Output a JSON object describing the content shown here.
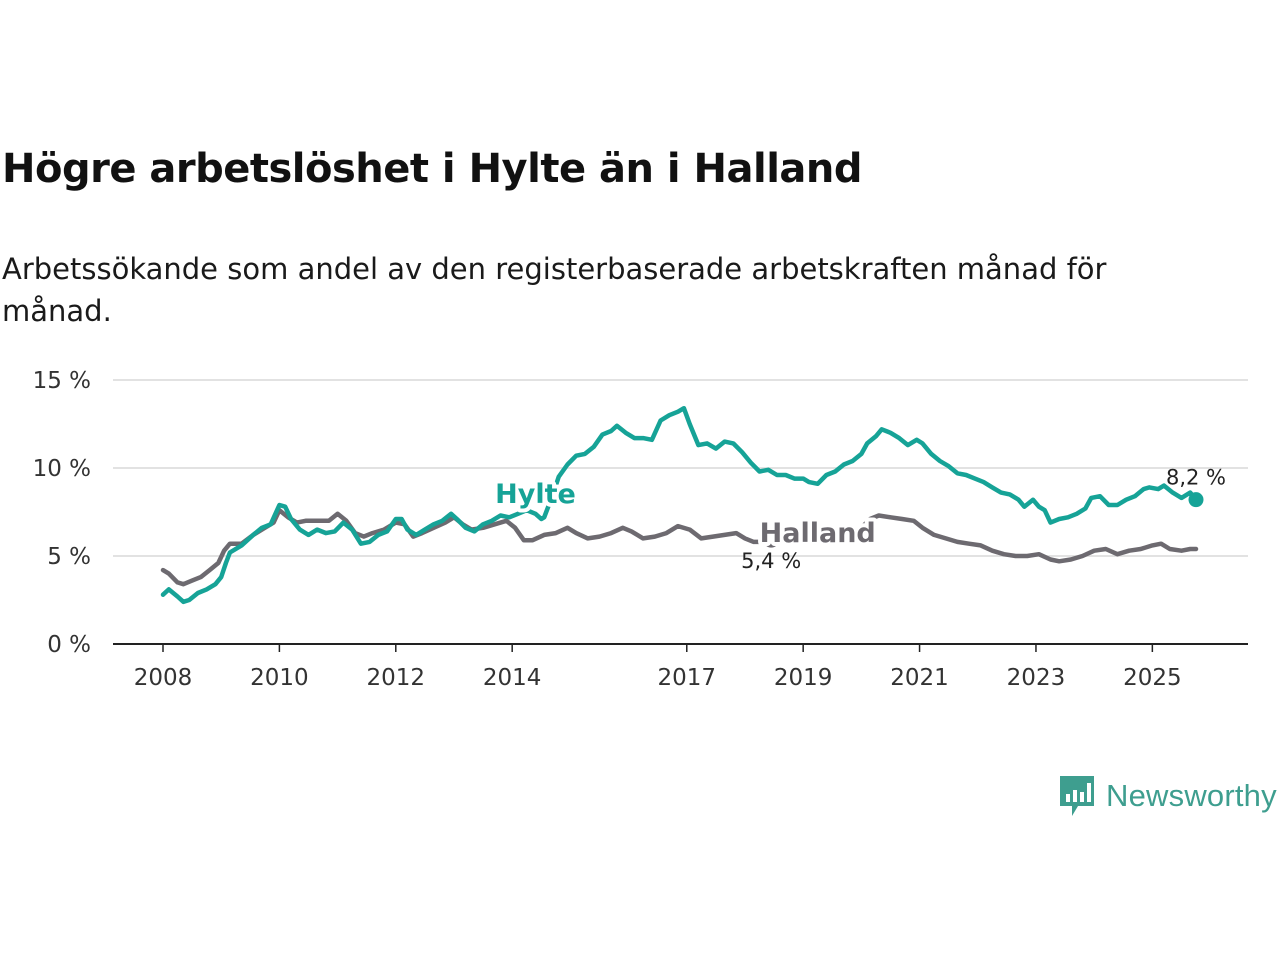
{
  "title": "Högre arbetslöshet i Hylte än i Halland",
  "subtitle": "Arbetssökande som andel av den registerbaserade arbetskraften månad för månad.",
  "brand": {
    "name": "Newsworthy",
    "icon": "bar-chart-speech-bubble-icon",
    "color": "#3e9e8f"
  },
  "chart_data": {
    "type": "line",
    "title": "Högre arbetslöshet i Hylte än i Halland",
    "xlabel": "",
    "ylabel": "",
    "xlim": [
      2008.0,
      2025.75
    ],
    "ylim": [
      0,
      15
    ],
    "y_ticks": [
      0,
      5,
      10,
      15
    ],
    "y_tick_labels": [
      "0 %",
      "5 %",
      "10 %",
      "15 %"
    ],
    "x_ticks": [
      2008,
      2010,
      2012,
      2014,
      2017,
      2019,
      2021,
      2023,
      2025
    ],
    "x_tick_labels": [
      "2008",
      "2010",
      "2012",
      "2014",
      "2017",
      "2019",
      "2021",
      "2023",
      "2025"
    ],
    "grid": true,
    "series": [
      {
        "name": "Hylte",
        "color": "#16a397",
        "end_label": "8,2 %",
        "points": [
          [
            2008.0,
            2.8
          ],
          [
            2008.1,
            3.1
          ],
          [
            2008.25,
            2.7
          ],
          [
            2008.35,
            2.4
          ],
          [
            2008.45,
            2.5
          ],
          [
            2008.6,
            2.9
          ],
          [
            2008.75,
            3.1
          ],
          [
            2008.9,
            3.4
          ],
          [
            2009.0,
            3.8
          ],
          [
            2009.08,
            4.6
          ],
          [
            2009.15,
            5.2
          ],
          [
            2009.35,
            5.6
          ],
          [
            2009.55,
            6.2
          ],
          [
            2009.7,
            6.6
          ],
          [
            2009.85,
            6.8
          ],
          [
            2010.0,
            7.9
          ],
          [
            2010.1,
            7.8
          ],
          [
            2010.2,
            7.1
          ],
          [
            2010.35,
            6.5
          ],
          [
            2010.5,
            6.2
          ],
          [
            2010.65,
            6.5
          ],
          [
            2010.8,
            6.3
          ],
          [
            2010.95,
            6.4
          ],
          [
            2011.1,
            6.9
          ],
          [
            2011.25,
            6.5
          ],
          [
            2011.4,
            5.7
          ],
          [
            2011.55,
            5.8
          ],
          [
            2011.7,
            6.2
          ],
          [
            2011.85,
            6.4
          ],
          [
            2012.0,
            7.1
          ],
          [
            2012.1,
            7.1
          ],
          [
            2012.2,
            6.5
          ],
          [
            2012.35,
            6.2
          ],
          [
            2012.5,
            6.5
          ],
          [
            2012.65,
            6.8
          ],
          [
            2012.8,
            7.0
          ],
          [
            2012.95,
            7.4
          ],
          [
            2013.05,
            7.1
          ],
          [
            2013.2,
            6.6
          ],
          [
            2013.35,
            6.4
          ],
          [
            2013.5,
            6.8
          ],
          [
            2013.65,
            7.0
          ],
          [
            2013.8,
            7.3
          ],
          [
            2013.95,
            7.2
          ],
          [
            2014.1,
            7.4
          ],
          [
            2014.25,
            7.6
          ],
          [
            2014.4,
            7.4
          ],
          [
            2014.5,
            7.1
          ],
          [
            2014.55,
            7.2
          ],
          [
            2014.7,
            8.5
          ],
          [
            2014.8,
            9.5
          ],
          [
            2014.95,
            10.2
          ],
          [
            2015.1,
            10.7
          ],
          [
            2015.25,
            10.8
          ],
          [
            2015.4,
            11.2
          ],
          [
            2015.55,
            11.9
          ],
          [
            2015.7,
            12.1
          ],
          [
            2015.8,
            12.4
          ],
          [
            2015.95,
            12.0
          ],
          [
            2016.1,
            11.7
          ],
          [
            2016.25,
            11.7
          ],
          [
            2016.4,
            11.6
          ],
          [
            2016.55,
            12.7
          ],
          [
            2016.7,
            13.0
          ],
          [
            2016.85,
            13.2
          ],
          [
            2016.95,
            13.4
          ],
          [
            2017.05,
            12.5
          ],
          [
            2017.2,
            11.3
          ],
          [
            2017.35,
            11.4
          ],
          [
            2017.5,
            11.1
          ],
          [
            2017.65,
            11.5
          ],
          [
            2017.8,
            11.4
          ],
          [
            2017.95,
            10.9
          ],
          [
            2018.1,
            10.3
          ],
          [
            2018.25,
            9.8
          ],
          [
            2018.4,
            9.9
          ],
          [
            2018.55,
            9.6
          ],
          [
            2018.7,
            9.6
          ],
          [
            2018.85,
            9.4
          ],
          [
            2019.0,
            9.4
          ],
          [
            2019.1,
            9.2
          ],
          [
            2019.25,
            9.1
          ],
          [
            2019.4,
            9.6
          ],
          [
            2019.55,
            9.8
          ],
          [
            2019.7,
            10.2
          ],
          [
            2019.85,
            10.4
          ],
          [
            2020.0,
            10.8
          ],
          [
            2020.1,
            11.4
          ],
          [
            2020.25,
            11.8
          ],
          [
            2020.35,
            12.2
          ],
          [
            2020.5,
            12.0
          ],
          [
            2020.65,
            11.7
          ],
          [
            2020.8,
            11.3
          ],
          [
            2020.95,
            11.6
          ],
          [
            2021.05,
            11.4
          ],
          [
            2021.2,
            10.8
          ],
          [
            2021.35,
            10.4
          ],
          [
            2021.5,
            10.1
          ],
          [
            2021.65,
            9.7
          ],
          [
            2021.8,
            9.6
          ],
          [
            2021.95,
            9.4
          ],
          [
            2022.1,
            9.2
          ],
          [
            2022.25,
            8.9
          ],
          [
            2022.4,
            8.6
          ],
          [
            2022.55,
            8.5
          ],
          [
            2022.7,
            8.2
          ],
          [
            2022.8,
            7.8
          ],
          [
            2022.95,
            8.2
          ],
          [
            2023.05,
            7.8
          ],
          [
            2023.15,
            7.6
          ],
          [
            2023.25,
            6.9
          ],
          [
            2023.4,
            7.1
          ],
          [
            2023.55,
            7.2
          ],
          [
            2023.7,
            7.4
          ],
          [
            2023.85,
            7.7
          ],
          [
            2023.95,
            8.3
          ],
          [
            2024.1,
            8.4
          ],
          [
            2024.25,
            7.9
          ],
          [
            2024.4,
            7.9
          ],
          [
            2024.55,
            8.2
          ],
          [
            2024.7,
            8.4
          ],
          [
            2024.85,
            8.8
          ],
          [
            2024.95,
            8.9
          ],
          [
            2025.1,
            8.8
          ],
          [
            2025.2,
            9.0
          ],
          [
            2025.35,
            8.6
          ],
          [
            2025.5,
            8.3
          ],
          [
            2025.65,
            8.6
          ],
          [
            2025.75,
            8.2
          ]
        ]
      },
      {
        "name": "Halland",
        "color": "#6d6a70",
        "end_label": "5,4 %",
        "points": [
          [
            2008.0,
            4.2
          ],
          [
            2008.1,
            4.0
          ],
          [
            2008.25,
            3.5
          ],
          [
            2008.35,
            3.4
          ],
          [
            2008.5,
            3.6
          ],
          [
            2008.65,
            3.8
          ],
          [
            2008.8,
            4.2
          ],
          [
            2008.95,
            4.6
          ],
          [
            2009.05,
            5.3
          ],
          [
            2009.15,
            5.7
          ],
          [
            2009.35,
            5.7
          ],
          [
            2009.55,
            6.2
          ],
          [
            2009.75,
            6.6
          ],
          [
            2009.9,
            6.9
          ],
          [
            2010.0,
            7.6
          ],
          [
            2010.15,
            7.2
          ],
          [
            2010.3,
            6.9
          ],
          [
            2010.45,
            7.0
          ],
          [
            2010.65,
            7.0
          ],
          [
            2010.85,
            7.0
          ],
          [
            2011.0,
            7.4
          ],
          [
            2011.15,
            7.0
          ],
          [
            2011.3,
            6.3
          ],
          [
            2011.45,
            6.1
          ],
          [
            2011.6,
            6.3
          ],
          [
            2011.8,
            6.5
          ],
          [
            2012.0,
            6.9
          ],
          [
            2012.15,
            6.8
          ],
          [
            2012.3,
            6.1
          ],
          [
            2012.45,
            6.3
          ],
          [
            2012.65,
            6.6
          ],
          [
            2012.85,
            6.9
          ],
          [
            2013.0,
            7.2
          ],
          [
            2013.15,
            6.8
          ],
          [
            2013.3,
            6.5
          ],
          [
            2013.5,
            6.6
          ],
          [
            2013.7,
            6.8
          ],
          [
            2013.9,
            7.0
          ],
          [
            2014.05,
            6.6
          ],
          [
            2014.2,
            5.9
          ],
          [
            2014.35,
            5.9
          ],
          [
            2014.55,
            6.2
          ],
          [
            2014.75,
            6.3
          ],
          [
            2014.95,
            6.6
          ],
          [
            2015.1,
            6.3
          ],
          [
            2015.3,
            6.0
          ],
          [
            2015.5,
            6.1
          ],
          [
            2015.7,
            6.3
          ],
          [
            2015.9,
            6.6
          ],
          [
            2016.05,
            6.4
          ],
          [
            2016.25,
            6.0
          ],
          [
            2016.45,
            6.1
          ],
          [
            2016.65,
            6.3
          ],
          [
            2016.85,
            6.7
          ],
          [
            2017.05,
            6.5
          ],
          [
            2017.25,
            6.0
          ],
          [
            2017.45,
            6.1
          ],
          [
            2017.65,
            6.2
          ],
          [
            2017.85,
            6.3
          ],
          [
            2018.0,
            6.0
          ],
          [
            2018.15,
            5.8
          ],
          [
            2018.3,
            5.8
          ],
          [
            2018.45,
            5.9
          ]
        ]
      },
      {
        "name": "Halland",
        "color": "#6d6a70",
        "end_label": "",
        "points": [
          [
            2020.0,
            6.6
          ],
          [
            2020.15,
            7.1
          ],
          [
            2020.3,
            7.3
          ],
          [
            2020.5,
            7.2
          ],
          [
            2020.7,
            7.1
          ],
          [
            2020.9,
            7.0
          ],
          [
            2021.05,
            6.6
          ],
          [
            2021.25,
            6.2
          ],
          [
            2021.45,
            6.0
          ],
          [
            2021.65,
            5.8
          ],
          [
            2021.85,
            5.7
          ],
          [
            2022.05,
            5.6
          ],
          [
            2022.25,
            5.3
          ],
          [
            2022.45,
            5.1
          ],
          [
            2022.65,
            5.0
          ],
          [
            2022.85,
            5.0
          ],
          [
            2023.05,
            5.1
          ],
          [
            2023.25,
            4.8
          ],
          [
            2023.4,
            4.7
          ],
          [
            2023.6,
            4.8
          ],
          [
            2023.8,
            5.0
          ],
          [
            2024.0,
            5.3
          ],
          [
            2024.2,
            5.4
          ],
          [
            2024.4,
            5.1
          ],
          [
            2024.6,
            5.3
          ],
          [
            2024.8,
            5.4
          ],
          [
            2025.0,
            5.6
          ],
          [
            2025.15,
            5.7
          ],
          [
            2025.3,
            5.4
          ],
          [
            2025.5,
            5.3
          ],
          [
            2025.65,
            5.4
          ],
          [
            2025.75,
            5.4
          ]
        ]
      }
    ],
    "series_labels": [
      {
        "text": "Hylte",
        "series": "Hylte",
        "x": 2014.4,
        "y": 8.0,
        "color": "#16a397"
      },
      {
        "text": "Halland",
        "series": "Halland",
        "x": 2019.25,
        "y": 5.8,
        "color": "#6d6a70"
      }
    ]
  }
}
